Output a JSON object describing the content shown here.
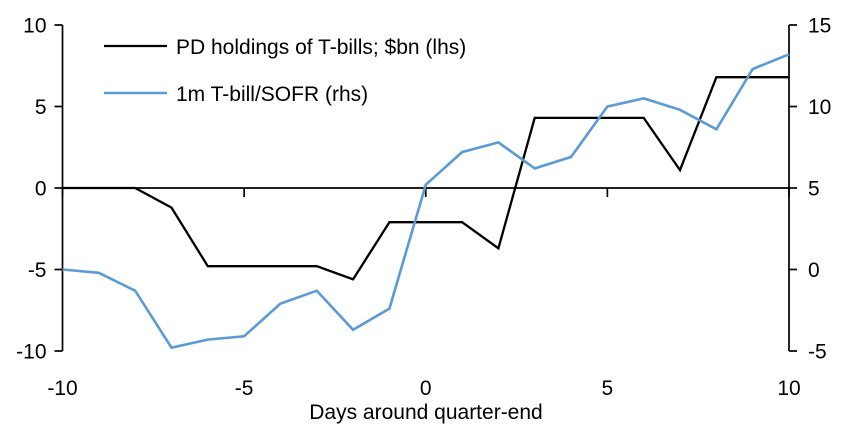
{
  "colors": {
    "background": "#ffffff",
    "axis": "#000000",
    "text": "#000000",
    "series_pd": "#000000",
    "series_sofr": "#5B9BD5"
  },
  "chart_data": {
    "type": "line",
    "title": "",
    "x_label": "Days around quarter-end",
    "x": [
      -10,
      -9,
      -8,
      -7,
      -6,
      -5,
      -4,
      -3,
      -2,
      -1,
      0,
      1,
      2,
      3,
      4,
      5,
      6,
      7,
      8,
      9,
      10
    ],
    "x_ticks": [
      -10,
      -5,
      0,
      5,
      10
    ],
    "left_axis": {
      "min": -10,
      "max": 10,
      "ticks": [
        10,
        5,
        0,
        -5,
        -10
      ]
    },
    "right_axis": {
      "min": -5,
      "max": 15,
      "ticks": [
        15,
        10,
        5,
        0,
        -5
      ]
    },
    "grid": "off",
    "legend_position": "top-left-inside",
    "series": [
      {
        "name": "PD holdings of T-bills; $bn (lhs)",
        "axis": "left",
        "color": "#000000",
        "width": 2.3,
        "values": [
          0,
          0,
          0,
          -1.2,
          -4.8,
          -4.8,
          -4.8,
          -4.8,
          -5.6,
          -2.1,
          -2.1,
          -2.1,
          -3.7,
          4.3,
          4.3,
          4.3,
          4.3,
          1.1,
          6.8,
          6.8,
          6.8
        ]
      },
      {
        "name": "1m T-bill/SOFR (rhs)",
        "axis": "right",
        "color": "#5B9BD5",
        "width": 2.6,
        "values": [
          0,
          -0.2,
          -1.3,
          -4.8,
          -4.3,
          -4.1,
          -2.1,
          -1.3,
          -3.7,
          -2.4,
          5.2,
          7.2,
          7.8,
          6.2,
          6.9,
          10.0,
          10.5,
          9.8,
          8.6,
          12.3,
          13.2
        ]
      }
    ]
  }
}
